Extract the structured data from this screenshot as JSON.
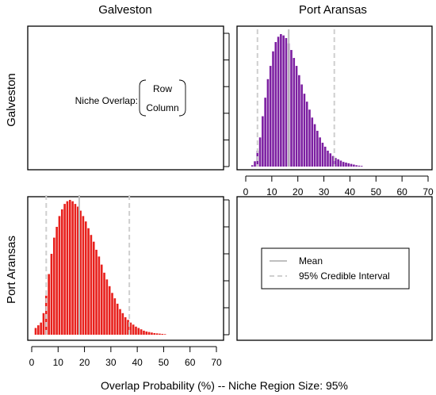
{
  "column_headers": [
    "Galveston",
    "Port Aransas"
  ],
  "row_headers": [
    "Galveston",
    "Port Aransas"
  ],
  "header_colors": [
    "#e8201c",
    "#7c1fa1"
  ],
  "xlabel": "Overlap Probability (%) -- Niche Region Size: 95%",
  "key": {
    "label": "Niche Overlap:",
    "row": "Row",
    "column": "Column"
  },
  "legend": {
    "mean_label": "Mean",
    "ci_label": "95% Credible Interval",
    "position": "bottom-right panel"
  },
  "chart_data": [
    {
      "type": "bar",
      "panel": "top-right",
      "row": "Galveston",
      "column": "Port Aransas",
      "color": "#7c1fa1",
      "xlim": [
        0,
        70
      ],
      "xticks": [
        0,
        10,
        20,
        30,
        40,
        50,
        60,
        70
      ],
      "bin_width": 1,
      "bin_starts": [
        2,
        3,
        4,
        5,
        6,
        7,
        8,
        9,
        10,
        11,
        12,
        13,
        14,
        15,
        16,
        17,
        18,
        19,
        20,
        21,
        22,
        23,
        24,
        25,
        26,
        27,
        28,
        29,
        30,
        31,
        32,
        33,
        34,
        35,
        36,
        37,
        38,
        39,
        40,
        41,
        42,
        43,
        44
      ],
      "values": [
        1,
        4,
        12,
        22,
        38,
        52,
        66,
        76,
        87,
        94,
        98,
        100,
        99,
        97,
        93,
        88,
        82,
        76,
        69,
        62,
        55,
        49,
        43,
        37,
        32,
        27,
        22,
        18,
        15,
        12,
        10,
        8,
        6.5,
        5.5,
        4.5,
        3.5,
        3,
        2.5,
        2,
        1.5,
        1,
        0.7,
        0.5
      ],
      "mean": 16.5,
      "ci": [
        4.5,
        34
      ],
      "grid": false
    },
    {
      "type": "bar",
      "panel": "bottom-left",
      "row": "Port Aransas",
      "column": "Galveston",
      "color": "#e8201c",
      "xlim": [
        0,
        70
      ],
      "xticks": [
        0,
        10,
        20,
        30,
        40,
        50,
        60,
        70
      ],
      "bin_width": 1,
      "bin_starts": [
        1,
        2,
        3,
        4,
        5,
        6,
        7,
        8,
        9,
        10,
        11,
        12,
        13,
        14,
        15,
        16,
        17,
        18,
        19,
        20,
        21,
        22,
        23,
        24,
        25,
        26,
        27,
        28,
        29,
        30,
        31,
        32,
        33,
        34,
        35,
        36,
        37,
        38,
        39,
        40,
        41,
        42,
        43,
        44,
        45,
        46,
        47,
        48,
        49,
        50
      ],
      "values": [
        5,
        7,
        9,
        16,
        29,
        45,
        60,
        72,
        80,
        88,
        93,
        97,
        99,
        100,
        99,
        97,
        95,
        92,
        88,
        84,
        79,
        74,
        69,
        63,
        58,
        52,
        46,
        41,
        36,
        31,
        27,
        23,
        19,
        16,
        13,
        11,
        9,
        7.5,
        6,
        5,
        4,
        3,
        2.4,
        2,
        1.6,
        1.2,
        1,
        0.8,
        0.6,
        0.4
      ],
      "mean": 18,
      "ci": [
        5.5,
        37
      ],
      "grid": false
    }
  ]
}
